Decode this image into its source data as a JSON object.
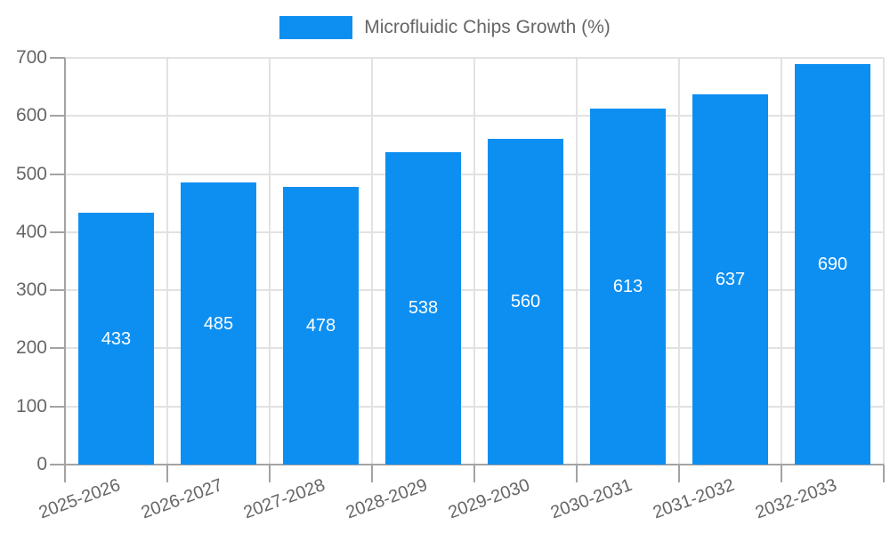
{
  "chart_data": {
    "type": "bar",
    "title": "Microfluidic Chips Growth (%)",
    "categories": [
      "2025-2026",
      "2026-2027",
      "2027-2028",
      "2028-2029",
      "2029-2030",
      "2030-2031",
      "2031-2032",
      "2032-2033"
    ],
    "values": [
      433,
      485,
      478,
      538,
      560,
      613,
      637,
      690
    ],
    "xlabel": "",
    "ylabel": "",
    "ylim": [
      0,
      700
    ],
    "yticks": [
      0,
      100,
      200,
      300,
      400,
      500,
      600,
      700
    ],
    "grid": true,
    "legend_position": "top-center",
    "value_label_position": "inside-center",
    "colors": {
      "bar": "#0d8ff2",
      "value_label": "#ffffff",
      "tick_label": "#666666",
      "legend_label": "#666666",
      "grid": "#e2e2e2",
      "axis": "#a3a3a3",
      "background": "#ffffff"
    }
  }
}
